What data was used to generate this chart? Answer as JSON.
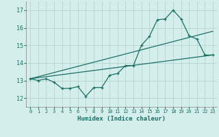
{
  "title": "",
  "xlabel": "Humidex (Indice chaleur)",
  "xlim": [
    -0.5,
    23.5
  ],
  "ylim": [
    11.5,
    17.5
  ],
  "yticks": [
    12,
    13,
    14,
    15,
    16,
    17
  ],
  "xticks": [
    0,
    1,
    2,
    3,
    4,
    5,
    6,
    7,
    8,
    9,
    10,
    11,
    12,
    13,
    14,
    15,
    16,
    17,
    18,
    19,
    20,
    21,
    22,
    23
  ],
  "bg_color": "#d4eeeb",
  "line_color": "#1a6e65",
  "grid_color": "#b8d8d4",
  "line1_x": [
    0,
    1,
    2,
    3,
    4,
    5,
    6,
    7,
    8,
    9,
    10,
    11,
    12,
    13,
    14,
    15,
    16,
    17,
    18,
    19,
    20,
    21,
    22,
    23
  ],
  "line1_y": [
    13.1,
    13.0,
    13.1,
    12.9,
    12.55,
    12.55,
    12.65,
    12.1,
    12.6,
    12.6,
    13.3,
    13.4,
    13.85,
    13.85,
    15.0,
    15.5,
    16.45,
    16.5,
    17.0,
    16.5,
    15.55,
    15.35,
    14.45,
    14.45
  ],
  "line2_x": [
    0,
    23
  ],
  "line2_y": [
    13.1,
    14.45
  ],
  "line3_x": [
    0,
    23
  ],
  "line3_y": [
    13.1,
    15.8
  ]
}
